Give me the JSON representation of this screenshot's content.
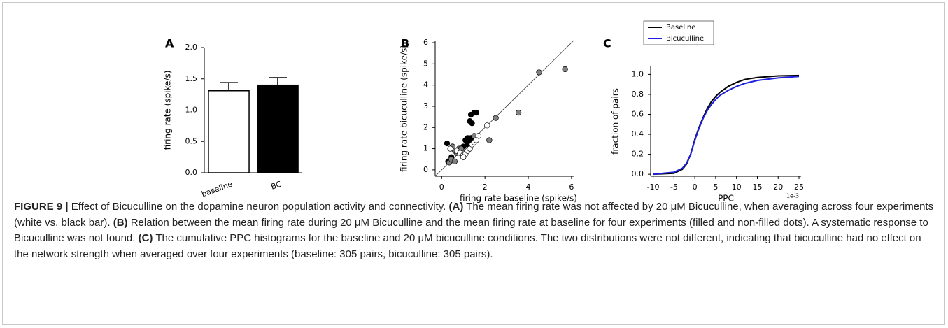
{
  "chart_data": [
    {
      "type": "bar",
      "panel": "A",
      "categories": [
        "baseline",
        "BC"
      ],
      "values": [
        1.31,
        1.4
      ],
      "errors": [
        0.13,
        0.12
      ],
      "colors": [
        "#ffffff",
        "#000000"
      ],
      "ylabel": "firing rate (spike/s)",
      "ylim": [
        0,
        2
      ],
      "yticks": [
        {
          "value": 0,
          "label": "0.0"
        },
        0.5,
        {
          "value": 1,
          "label": "1.0"
        },
        1.5,
        {
          "value": 2,
          "label": "2.0"
        }
      ]
    },
    {
      "type": "scatter",
      "panel": "B",
      "xlabel": "firing rate baseline (spike/s)",
      "ylabel": "firing rate bicuculline (spike/s)",
      "xlim": [
        -0.3,
        6.1
      ],
      "ylim": [
        -0.3,
        6.1
      ],
      "xticks": [
        0,
        2,
        4,
        6
      ],
      "yticks": [
        0,
        1,
        2,
        3,
        4,
        5,
        6
      ],
      "diagonal": true,
      "series": [
        {
          "color": "#000000",
          "x": [
            0.25,
            0.3,
            0.45,
            1.0,
            1.1,
            1.2,
            1.25,
            1.3,
            1.35,
            1.4,
            1.5,
            1.6,
            1.2,
            1.35
          ],
          "y": [
            1.25,
            0.4,
            0.6,
            1.1,
            1.4,
            1.5,
            1.4,
            2.3,
            2.6,
            2.2,
            2.7,
            2.7,
            1.2,
            1.5
          ]
        },
        {
          "color": "#808080",
          "x": [
            0.35,
            0.5,
            0.6,
            0.7,
            0.8,
            0.9,
            1.0,
            1.5,
            2.2,
            2.5,
            3.55,
            4.5,
            5.7,
            0.45,
            0.6
          ],
          "y": [
            0.35,
            1.1,
            0.9,
            0.8,
            1.0,
            1.0,
            0.8,
            1.6,
            1.4,
            2.45,
            2.7,
            4.6,
            4.75,
            0.5,
            0.4
          ]
        },
        {
          "color": "#ffffff",
          "x": [
            0.4,
            0.7,
            0.85,
            1.0,
            1.1,
            1.2,
            1.3,
            1.4,
            1.5,
            1.7,
            2.1,
            1.0,
            1.6
          ],
          "y": [
            1.0,
            0.9,
            0.8,
            0.7,
            0.75,
            0.9,
            1.0,
            1.2,
            1.3,
            1.6,
            2.1,
            0.6,
            1.4
          ]
        }
      ]
    },
    {
      "type": "line",
      "panel": "C",
      "xlabel": "PPC",
      "ylabel": "fraction of pairs",
      "x_offset_label": "1e-3",
      "xlim": [
        -10.6,
        25.5
      ],
      "ylim": [
        -0.02,
        1.08
      ],
      "xticks": [
        -10,
        -5,
        0,
        5,
        10,
        15,
        20,
        25
      ],
      "yticks": [
        {
          "value": 0,
          "label": "0.0"
        },
        0.2,
        0.4,
        0.6,
        0.8,
        {
          "value": 1,
          "label": "1.0"
        }
      ],
      "legend": "upper left",
      "x": [
        -10,
        -5,
        -3,
        -2,
        -1,
        0,
        1,
        2,
        3,
        4,
        5,
        6,
        8,
        10,
        12,
        15,
        20,
        25
      ],
      "series": [
        {
          "name": "Baseline",
          "color": "#000000",
          "values": [
            0,
            0.01,
            0.05,
            0.1,
            0.2,
            0.35,
            0.47,
            0.57,
            0.66,
            0.73,
            0.78,
            0.82,
            0.88,
            0.92,
            0.95,
            0.97,
            0.985,
            0.99
          ]
        },
        {
          "name": "Bicuculline",
          "color": "#1f1fe0",
          "values": [
            0,
            0.02,
            0.06,
            0.11,
            0.2,
            0.34,
            0.46,
            0.56,
            0.64,
            0.7,
            0.75,
            0.79,
            0.84,
            0.88,
            0.91,
            0.94,
            0.965,
            0.98
          ]
        }
      ]
    }
  ],
  "caption": {
    "label": "FIGURE 9 |",
    "parts": [
      {
        "text": " Effect of Bicuculline on the dopamine neuron population activity and connectivity. ",
        "bold": false
      },
      {
        "text": "(A)",
        "bold": true
      },
      {
        "text": " The mean firing rate was not affected by 20 μM Bicuculline, when averaging across four experiments (white vs. black bar). ",
        "bold": false
      },
      {
        "text": "(B)",
        "bold": true
      },
      {
        "text": " Relation between the mean firing rate during 20 μM Bicuculline and the mean firing rate at baseline for four experiments (filled and non-filled dots). A systematic response to Bicuculline was not found. ",
        "bold": false
      },
      {
        "text": "(C)",
        "bold": true
      },
      {
        "text": " The cumulative PPC histograms for the baseline and 20 μM bicuculline conditions. The two distributions were not different, indicating that bicuculline had no effect on the network strength when averaged over four experiments (baseline: 305 pairs, bicuculline: 305 pairs).",
        "bold": false
      }
    ]
  }
}
